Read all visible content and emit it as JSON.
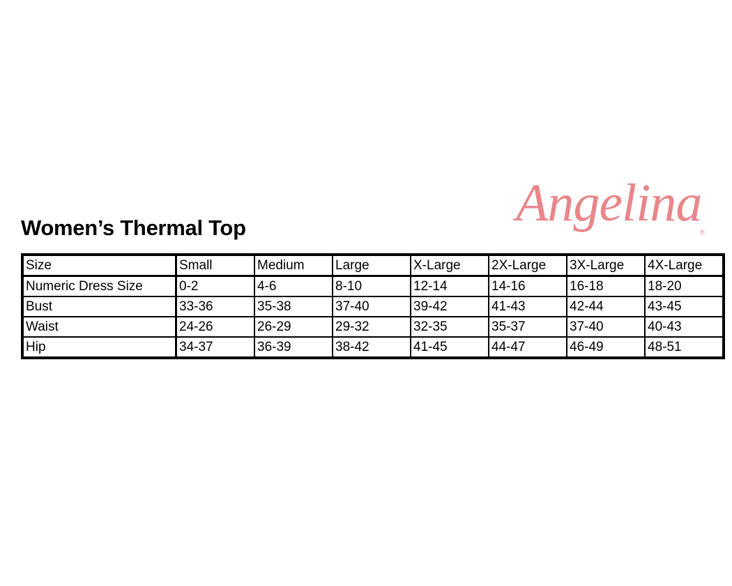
{
  "title": "Women’s Thermal Top",
  "logo": {
    "text": "Angelina",
    "mark": "®",
    "color": "#e8868a"
  },
  "table": {
    "headers": [
      "Size",
      "Small",
      "Medium",
      "Large",
      "X-Large",
      "2X-Large",
      "3X-Large",
      "4X-Large"
    ],
    "rows": [
      [
        "Numeric Dress Size",
        "0-2",
        "4-6",
        "8-10",
        "12-14",
        "14-16",
        "16-18",
        "18-20"
      ],
      [
        "Bust",
        "33-36",
        "35-38",
        "37-40",
        "39-42",
        "41-43",
        "42-44",
        "43-45"
      ],
      [
        "Waist",
        "24-26",
        "26-29",
        "29-32",
        "32-35",
        "35-37",
        "37-40",
        "40-43"
      ],
      [
        "Hip",
        "34-37",
        "36-39",
        "38-42",
        "41-45",
        "44-47",
        "46-49",
        "48-51"
      ]
    ]
  }
}
